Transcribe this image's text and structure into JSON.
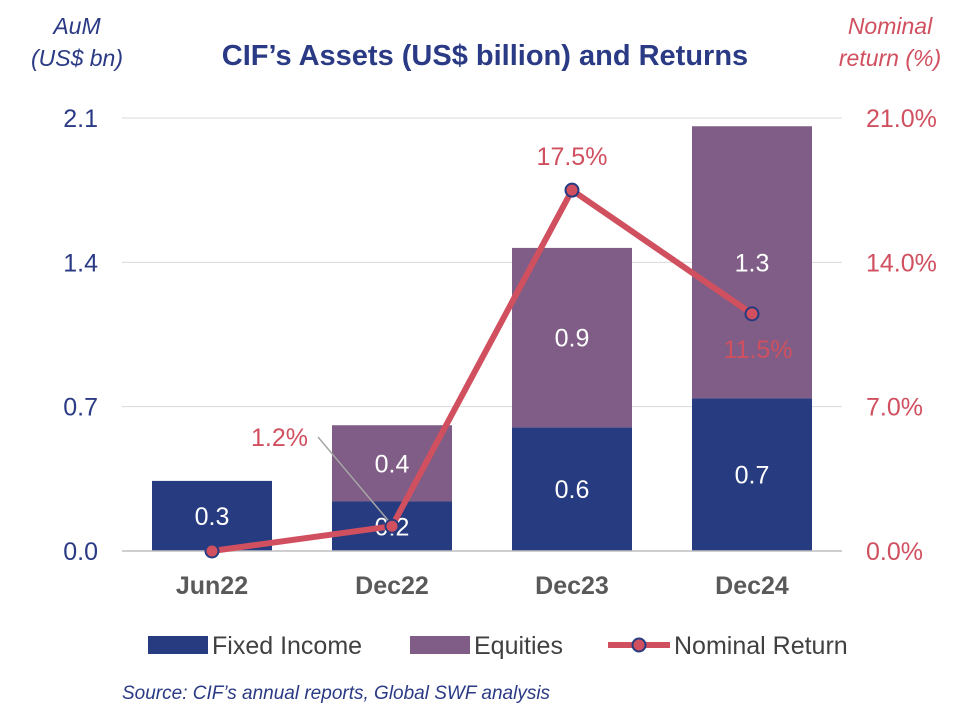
{
  "chart_data": {
    "type": "bar",
    "title": "CIF’s Assets (US$ billion) and Returns",
    "y_axis_left": {
      "label_line1": "AuM",
      "label_line2": "(US$ bn)",
      "ticks": [
        "0.0",
        "0.7",
        "1.4",
        "2.1"
      ],
      "range": [
        0,
        2.1
      ]
    },
    "y_axis_right": {
      "label_line1": "Nominal",
      "label_line2": "return (%)",
      "ticks": [
        "0.0%",
        "7.0%",
        "14.0%",
        "21.0%"
      ],
      "range": [
        0,
        21
      ]
    },
    "categories": [
      "Jun22",
      "Dec22",
      "Dec23",
      "Dec24"
    ],
    "series": [
      {
        "name": "Fixed Income",
        "kind": "bar",
        "stack": "aum",
        "color": "#263b80",
        "values": [
          0.34,
          0.24,
          0.6,
          0.74
        ],
        "data_labels": [
          "0.3",
          "0.2",
          "0.6",
          "0.7"
        ]
      },
      {
        "name": "Equities",
        "kind": "bar",
        "stack": "aum",
        "color": "#7f5d86",
        "values": [
          0,
          0.37,
          0.87,
          1.32
        ],
        "data_labels": [
          "",
          "0.4",
          "0.9",
          "1.3"
        ]
      },
      {
        "name": "Nominal Return",
        "kind": "line",
        "axis": "right",
        "color": "#d0505f",
        "marker_color": "#263b80",
        "values": [
          0.0,
          1.2,
          17.5,
          11.5
        ],
        "data_labels": [
          "",
          "1.2%",
          "17.5%",
          "11.5%"
        ]
      }
    ],
    "grid": true,
    "legend_position": "bottom",
    "source": "Source: CIF’s annual reports, Global SWF analysis"
  }
}
